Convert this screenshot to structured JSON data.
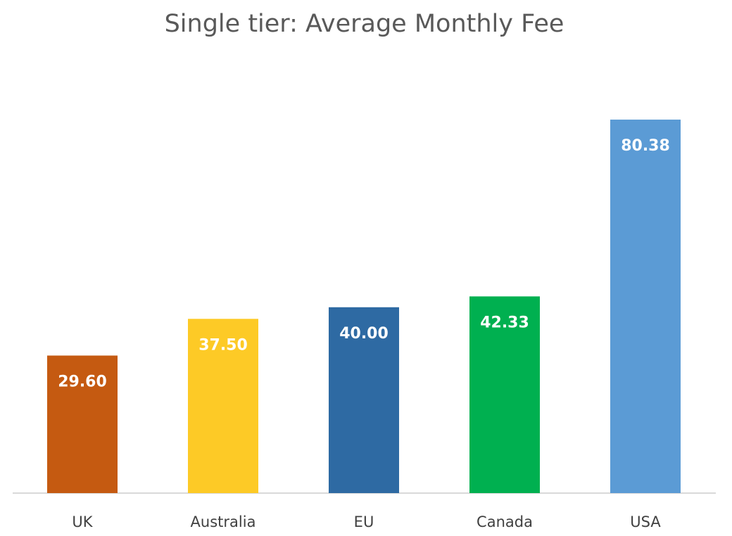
{
  "chart_data": {
    "type": "bar",
    "title": "Single tier: Average Monthly Fee",
    "xlabel": "",
    "ylabel": "",
    "ylim": [
      0,
      90
    ],
    "grid": false,
    "categories": [
      "UK",
      "Australia",
      "EU",
      "Canada",
      "USA"
    ],
    "values": [
      29.6,
      37.5,
      40.0,
      42.33,
      80.38
    ],
    "data_labels": [
      "29.60",
      "37.50",
      "40.00",
      "42.33",
      "80.38"
    ],
    "colors": [
      "#C55A11",
      "#FDCA26",
      "#2E6AA3",
      "#00B050",
      "#5B9BD5"
    ]
  }
}
